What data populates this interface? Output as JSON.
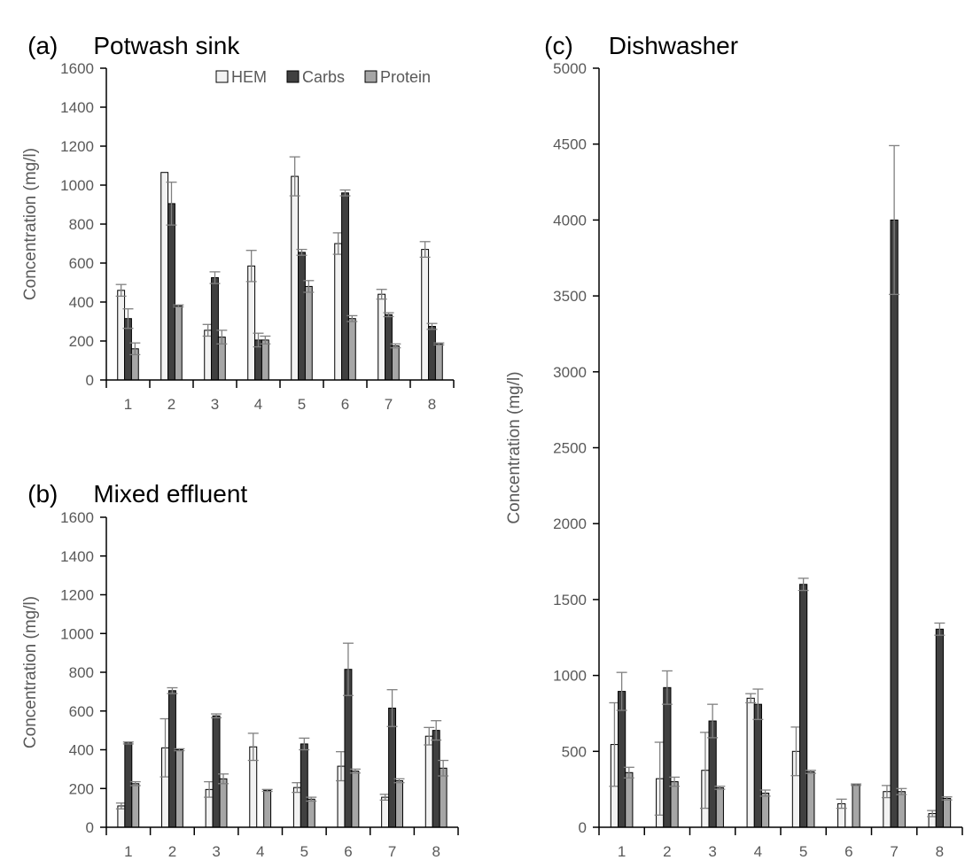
{
  "colors": {
    "HEM": "#f2f2f2",
    "Carbs": "#404040",
    "Protein": "#a6a6a6",
    "bar_edge": "#000000",
    "axis": "#000000",
    "error_bar": "#808080",
    "text": "#595959"
  },
  "chart_data": [
    {
      "type": "bar",
      "panel_label": "(a)",
      "title": "Potwash sink",
      "ylabel": "Concentration (mg/l)",
      "xlabel": "",
      "categories": [
        "1",
        "2",
        "3",
        "4",
        "5",
        "6",
        "7",
        "8"
      ],
      "ylim": [
        0,
        1600
      ],
      "yticks": [
        0,
        200,
        400,
        600,
        800,
        1000,
        1200,
        1400,
        1600
      ],
      "grid": false,
      "legend": "top-right",
      "series": [
        {
          "name": "HEM",
          "values": [
            460,
            1065,
            255,
            585,
            1045,
            700,
            440,
            670
          ],
          "errors": [
            30,
            0,
            30,
            80,
            100,
            55,
            25,
            40
          ]
        },
        {
          "name": "Carbs",
          "values": [
            315,
            905,
            525,
            205,
            655,
            960,
            335,
            275
          ],
          "errors": [
            50,
            110,
            30,
            35,
            15,
            15,
            10,
            15
          ]
        },
        {
          "name": "Protein",
          "values": [
            160,
            380,
            220,
            205,
            480,
            315,
            175,
            185
          ],
          "errors": [
            30,
            5,
            35,
            20,
            30,
            15,
            10,
            5
          ]
        }
      ]
    },
    {
      "type": "bar",
      "panel_label": "(b)",
      "title": "Mixed effluent",
      "ylabel": "Concentration (mg/l)",
      "xlabel": "",
      "categories": [
        "1",
        "2",
        "3",
        "4",
        "5",
        "6",
        "7",
        "8"
      ],
      "ylim": [
        0,
        1600
      ],
      "yticks": [
        0,
        200,
        400,
        600,
        800,
        1000,
        1200,
        1400,
        1600
      ],
      "grid": false,
      "series": [
        {
          "name": "HEM",
          "values": [
            110,
            410,
            195,
            415,
            205,
            315,
            155,
            470
          ],
          "errors": [
            15,
            150,
            40,
            70,
            25,
            75,
            15,
            45
          ]
        },
        {
          "name": "Carbs",
          "values": [
            435,
            705,
            575,
            0,
            430,
            815,
            615,
            500
          ],
          "errors": [
            5,
            15,
            10,
            0,
            30,
            135,
            95,
            50
          ]
        },
        {
          "name": "Protein",
          "values": [
            225,
            400,
            250,
            190,
            145,
            290,
            240,
            305
          ],
          "errors": [
            10,
            5,
            25,
            5,
            10,
            10,
            10,
            40
          ]
        }
      ]
    },
    {
      "type": "bar",
      "panel_label": "(c)",
      "title": "Dishwasher",
      "ylabel": "Concentration (mg/l)",
      "xlabel": "",
      "categories": [
        "1",
        "2",
        "3",
        "4",
        "5",
        "6",
        "7",
        "8"
      ],
      "ylim": [
        0,
        5000
      ],
      "yticks": [
        0,
        500,
        1000,
        1500,
        2000,
        2500,
        3000,
        3500,
        4000,
        4500,
        5000
      ],
      "grid": false,
      "series": [
        {
          "name": "HEM",
          "values": [
            545,
            320,
            375,
            850,
            500,
            155,
            235,
            90
          ],
          "errors": [
            275,
            240,
            250,
            30,
            160,
            30,
            40,
            20
          ]
        },
        {
          "name": "Carbs",
          "values": [
            895,
            920,
            700,
            810,
            1600,
            0,
            4000,
            1305
          ],
          "errors": [
            125,
            110,
            110,
            100,
            40,
            0,
            490,
            40
          ]
        },
        {
          "name": "Protein",
          "values": [
            360,
            300,
            260,
            225,
            365,
            280,
            235,
            190
          ],
          "errors": [
            35,
            30,
            10,
            20,
            10,
            5,
            20,
            10
          ]
        }
      ]
    }
  ]
}
